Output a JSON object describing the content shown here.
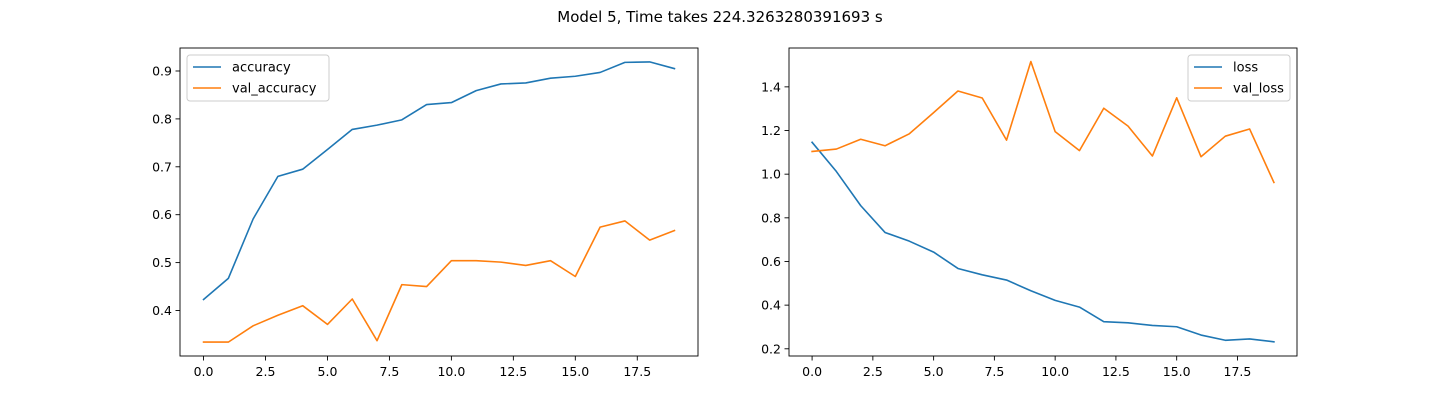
{
  "figure": {
    "suptitle": "Model 5, Time takes 224.3263280391693 s"
  },
  "chart_data": [
    {
      "type": "line",
      "title": "",
      "xlabel": "",
      "ylabel": "",
      "x": [
        0,
        1,
        2,
        3,
        4,
        5,
        6,
        7,
        8,
        9,
        10,
        11,
        12,
        13,
        14,
        15,
        16,
        17,
        18,
        19
      ],
      "xlim": [
        -0.95,
        19.95
      ],
      "ylim": [
        0.305,
        0.948
      ],
      "xticks": [
        0.0,
        2.5,
        5.0,
        7.5,
        10.0,
        12.5,
        15.0,
        17.5
      ],
      "xtick_labels": [
        "0.0",
        "2.5",
        "5.0",
        "7.5",
        "10.0",
        "12.5",
        "15.0",
        "17.5"
      ],
      "yticks": [
        0.4,
        0.5,
        0.6,
        0.7,
        0.8,
        0.9
      ],
      "ytick_labels": [
        "0.4",
        "0.5",
        "0.6",
        "0.7",
        "0.8",
        "0.9"
      ],
      "legend": "upper-left",
      "grid": false,
      "series": [
        {
          "name": "accuracy",
          "color": "#1f77b4",
          "values": [
            0.423,
            0.467,
            0.591,
            0.68,
            0.695,
            0.736,
            0.778,
            0.787,
            0.798,
            0.83,
            0.834,
            0.859,
            0.873,
            0.875,
            0.885,
            0.889,
            0.897,
            0.918,
            0.919,
            0.905
          ]
        },
        {
          "name": "val_accuracy",
          "color": "#ff7f0e",
          "values": [
            0.334,
            0.334,
            0.368,
            0.39,
            0.41,
            0.371,
            0.424,
            0.337,
            0.454,
            0.45,
            0.504,
            0.504,
            0.501,
            0.494,
            0.504,
            0.471,
            0.574,
            0.587,
            0.547,
            0.567
          ]
        }
      ]
    },
    {
      "type": "line",
      "title": "",
      "xlabel": "",
      "ylabel": "",
      "x": [
        0,
        1,
        2,
        3,
        4,
        5,
        6,
        7,
        8,
        9,
        10,
        11,
        12,
        13,
        14,
        15,
        16,
        17,
        18,
        19
      ],
      "xlim": [
        -0.95,
        19.95
      ],
      "ylim": [
        0.167,
        1.578
      ],
      "xticks": [
        0.0,
        2.5,
        5.0,
        7.5,
        10.0,
        12.5,
        15.0,
        17.5
      ],
      "xtick_labels": [
        "0.0",
        "2.5",
        "5.0",
        "7.5",
        "10.0",
        "12.5",
        "15.0",
        "17.5"
      ],
      "yticks": [
        0.2,
        0.4,
        0.6,
        0.8,
        1.0,
        1.2,
        1.4
      ],
      "ytick_labels": [
        "0.2",
        "0.4",
        "0.6",
        "0.8",
        "1.0",
        "1.2",
        "1.4"
      ],
      "legend": "upper-right",
      "grid": false,
      "series": [
        {
          "name": "loss",
          "color": "#1f77b4",
          "values": [
            1.146,
            1.012,
            0.856,
            0.733,
            0.693,
            0.643,
            0.568,
            0.539,
            0.515,
            0.466,
            0.422,
            0.391,
            0.324,
            0.319,
            0.307,
            0.301,
            0.263,
            0.239,
            0.245,
            0.232
          ]
        },
        {
          "name": "val_loss",
          "color": "#ff7f0e",
          "values": [
            1.104,
            1.115,
            1.16,
            1.13,
            1.185,
            1.282,
            1.381,
            1.349,
            1.156,
            1.516,
            1.195,
            1.108,
            1.302,
            1.22,
            1.083,
            1.35,
            1.08,
            1.174,
            1.207,
            0.962
          ]
        }
      ]
    }
  ]
}
